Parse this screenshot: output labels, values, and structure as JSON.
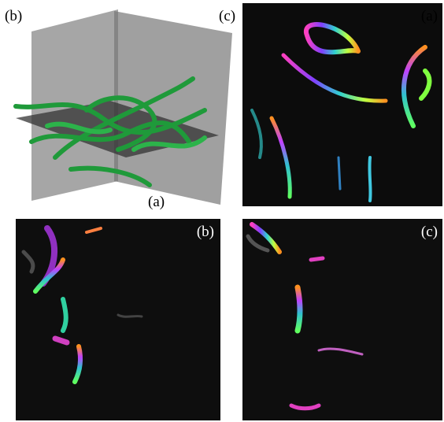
{
  "panels": [
    {
      "labels": [
        "(b)",
        "(c)",
        "(a)"
      ]
    },
    {
      "label": "(a)"
    },
    {
      "label": "(b)"
    },
    {
      "label": "(c)"
    }
  ]
}
